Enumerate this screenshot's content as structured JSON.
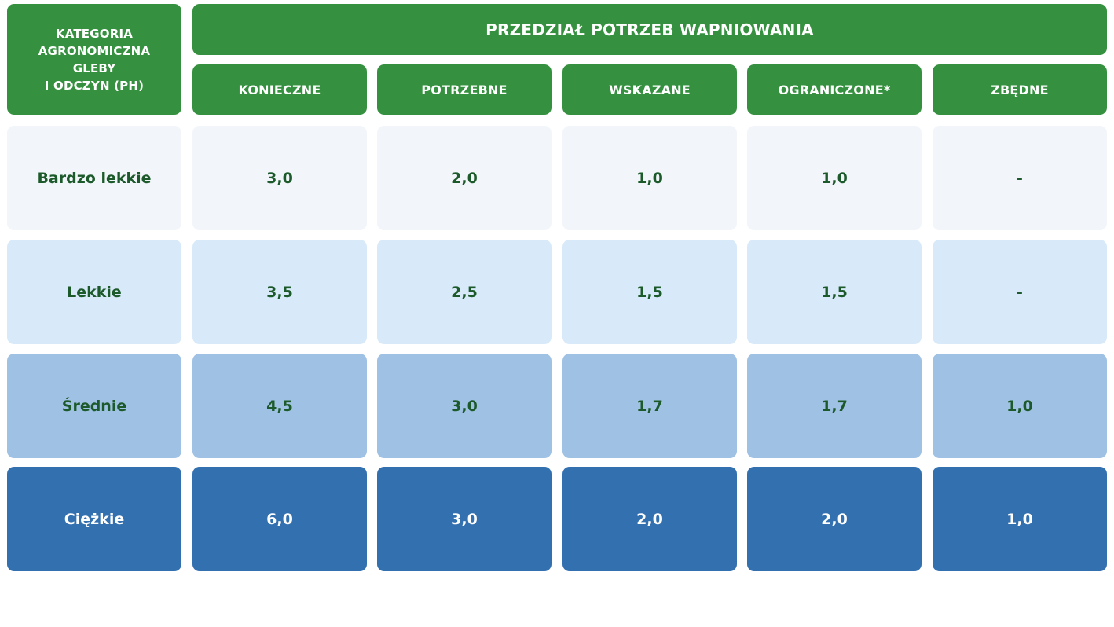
{
  "header": {
    "category_label": "KATEGORIA\nAGRONOMICZNA\nGLEBY\nI ODCZYN (PH)",
    "range_label": "PRZEDZIAŁ POTRZEB WAPNIOWANIA",
    "columns": [
      "KONIECZNE",
      "POTRZEBNE",
      "WSKAZANE",
      "OGRANICZONE*",
      "ZBĘDNE"
    ]
  },
  "rows": [
    {
      "category": "Bardzo lekkie",
      "values": [
        "3,0",
        "2,0",
        "1,0",
        "1,0",
        "-"
      ]
    },
    {
      "category": "Lekkie",
      "values": [
        "3,5",
        "2,5",
        "1,5",
        "1,5",
        "-"
      ]
    },
    {
      "category": "Średnie",
      "values": [
        "4,5",
        "3,0",
        "1,7",
        "1,7",
        "1,0"
      ]
    },
    {
      "category": "Ciężkie",
      "values": [
        "6,0",
        "3,0",
        "2,0",
        "2,0",
        "1,0"
      ]
    }
  ],
  "colors": {
    "header_green": "#35913f",
    "row_shades": [
      "#f2f6fa",
      "#d8eafa",
      "#9fc1e4",
      "#3370b0"
    ],
    "dark_text": "#1d5a2b"
  }
}
